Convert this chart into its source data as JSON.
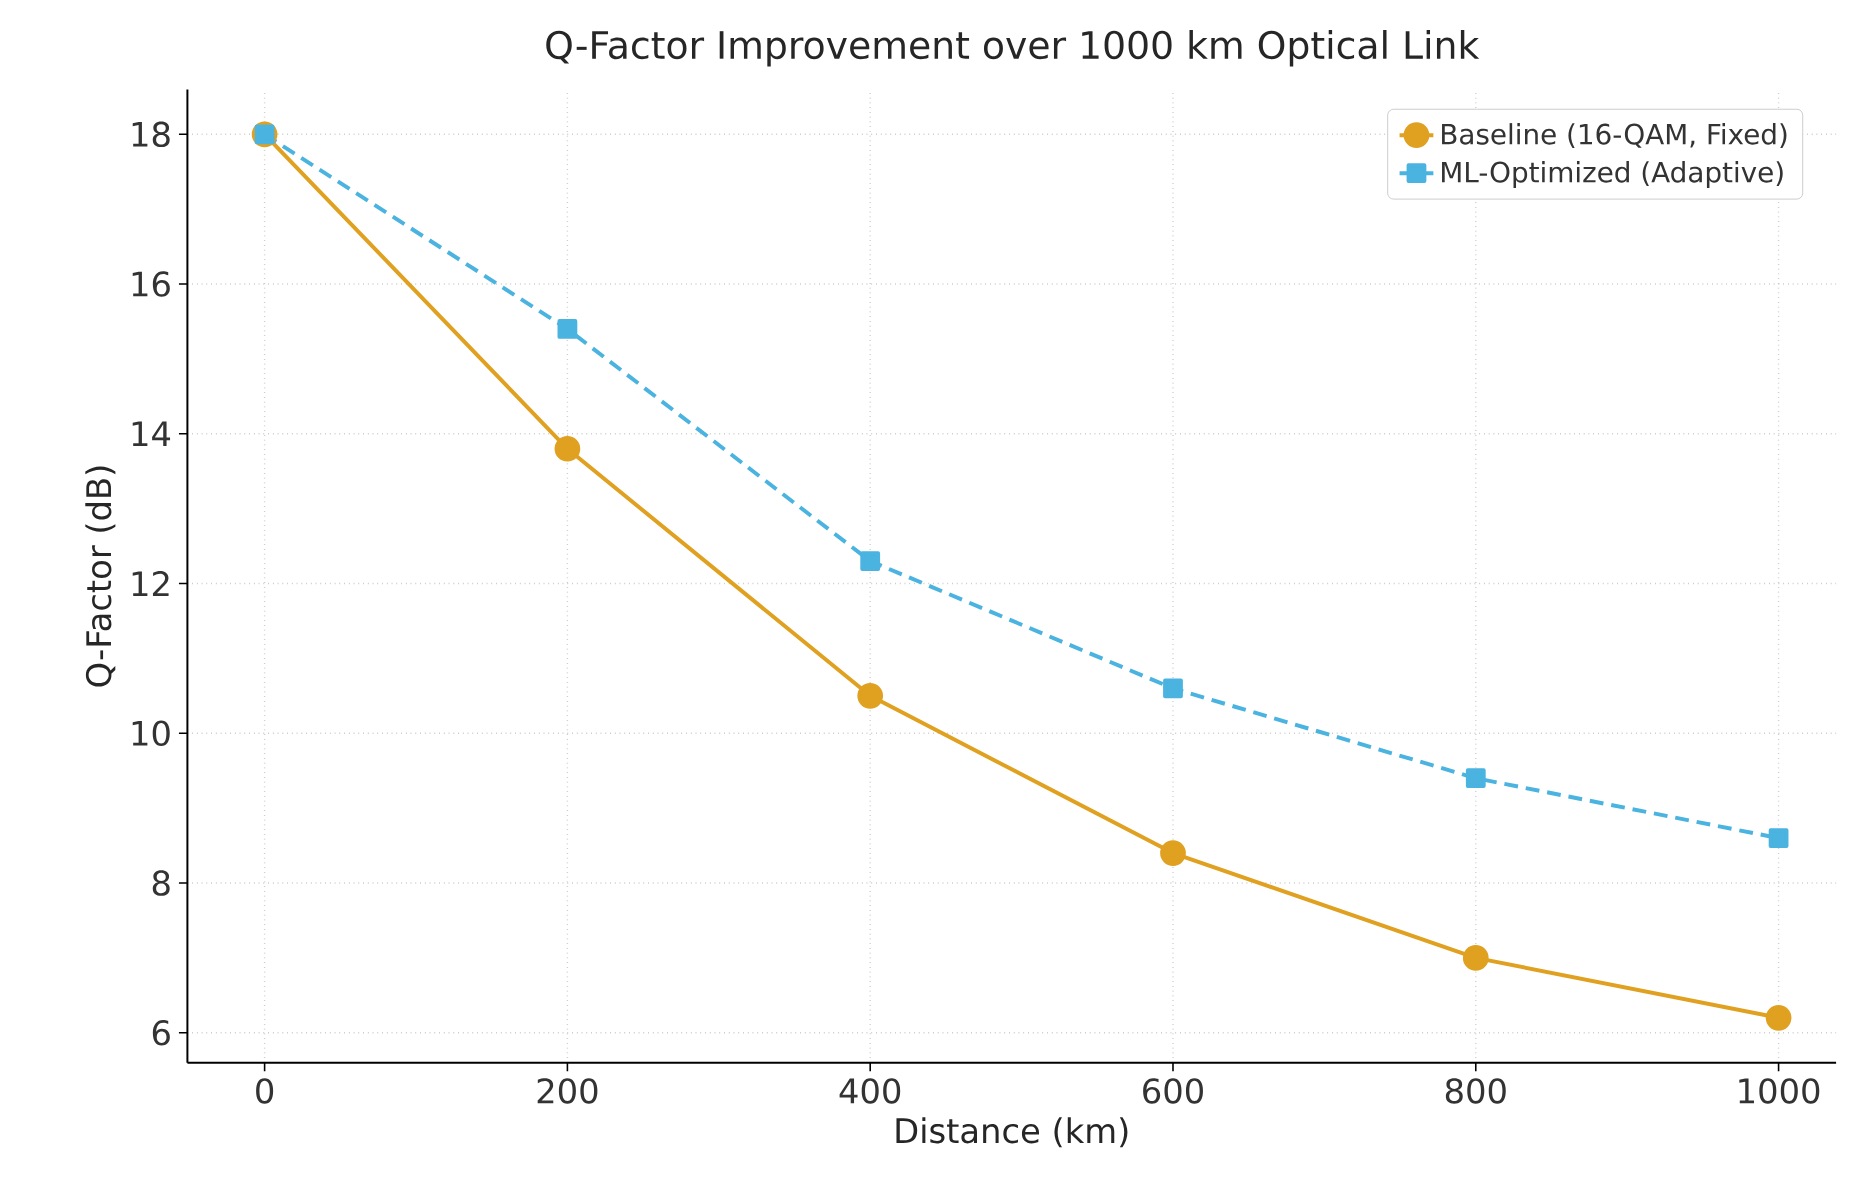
{
  "chart_data": {
    "type": "line",
    "title": "Q-Factor Improvement over 1000 km Optical Link",
    "xlabel": "Distance (km)",
    "ylabel": "Q-Factor (dB)",
    "x": [
      0,
      200,
      400,
      600,
      800,
      1000
    ],
    "series": [
      {
        "name": "Baseline (16-QAM, Fixed)",
        "color": "#e0a020",
        "values": [
          18,
          13.8,
          10.5,
          8.4,
          7.0,
          6.2
        ],
        "marker": "circle",
        "line_style": "solid"
      },
      {
        "name": "ML-Optimized (Adaptive)",
        "color": "#4ab3e0",
        "values": [
          18,
          15.4,
          12.3,
          10.6,
          9.4,
          8.6
        ],
        "marker": "square",
        "line_style": "dashed"
      }
    ],
    "xlim": [
      -51,
      1038
    ],
    "ylim": [
      5.6,
      18.6
    ],
    "xticks": [
      0,
      200,
      400,
      600,
      800,
      1000
    ],
    "yticks": [
      6,
      8,
      10,
      12,
      14,
      16,
      18
    ],
    "grid": true,
    "legend": "top right"
  }
}
